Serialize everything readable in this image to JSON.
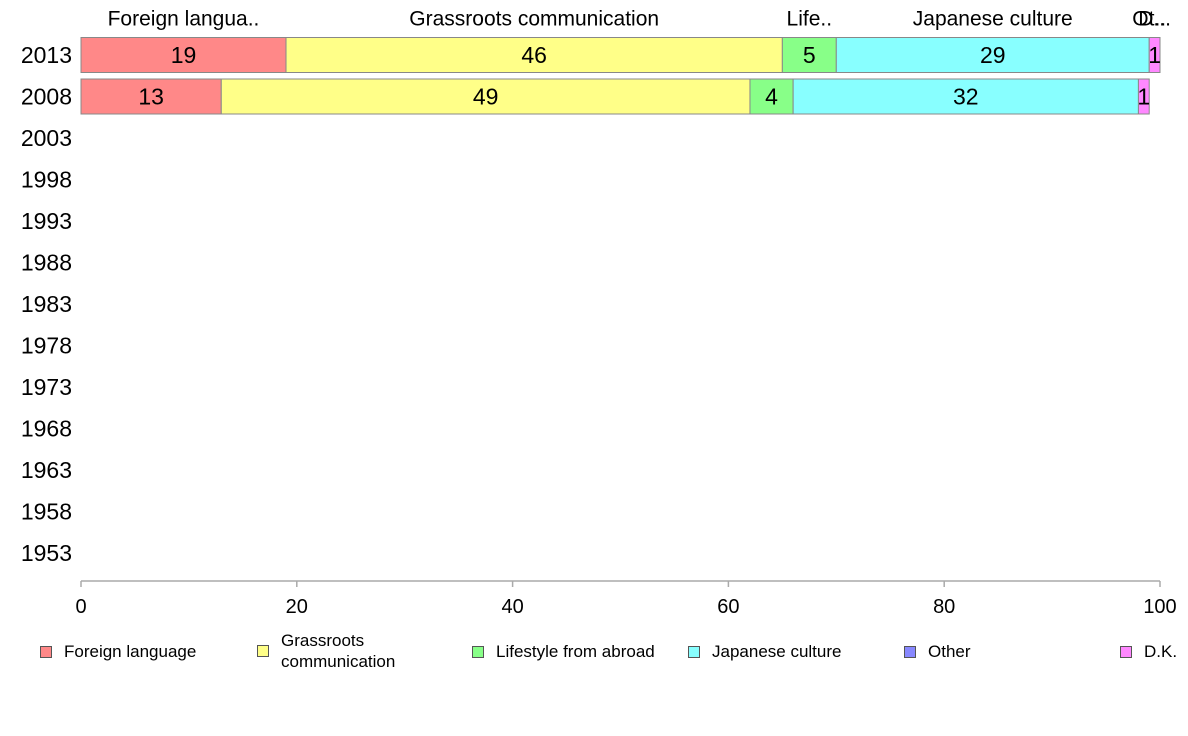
{
  "chart_data": {
    "type": "bar",
    "orientation": "horizontal",
    "stacked": true,
    "categories": [
      "2013",
      "2008",
      "2003",
      "1998",
      "1993",
      "1988",
      "1983",
      "1978",
      "1973",
      "1968",
      "1963",
      "1958",
      "1953"
    ],
    "series": [
      {
        "name": "Foreign language",
        "short_label": "Foreign langua..",
        "color": "#ff8888",
        "values": [
          19,
          13,
          null,
          null,
          null,
          null,
          null,
          null,
          null,
          null,
          null,
          null,
          null
        ]
      },
      {
        "name": "Grassroots communication",
        "short_label": "Grassroots communication",
        "color": "#ffff88",
        "values": [
          46,
          49,
          null,
          null,
          null,
          null,
          null,
          null,
          null,
          null,
          null,
          null,
          null
        ]
      },
      {
        "name": "Lifestyle from abroad",
        "short_label": "Life..",
        "color": "#88ff88",
        "values": [
          5,
          4,
          null,
          null,
          null,
          null,
          null,
          null,
          null,
          null,
          null,
          null,
          null
        ]
      },
      {
        "name": "Japanese culture",
        "short_label": "Japanese culture",
        "color": "#88ffff",
        "values": [
          29,
          32,
          null,
          null,
          null,
          null,
          null,
          null,
          null,
          null,
          null,
          null,
          null
        ]
      },
      {
        "name": "Other",
        "short_label": "Ot..",
        "color": "#8888ff",
        "values": [
          0,
          0,
          null,
          null,
          null,
          null,
          null,
          null,
          null,
          null,
          null,
          null,
          null
        ]
      },
      {
        "name": "D.K.",
        "short_label": "D...",
        "color": "#ff88ff",
        "values": [
          1,
          1,
          null,
          null,
          null,
          null,
          null,
          null,
          null,
          null,
          null,
          null,
          null
        ]
      }
    ],
    "xlim": [
      0,
      100
    ],
    "xticks": [
      0,
      20,
      40,
      60,
      80,
      100
    ],
    "legend_labels": [
      "Foreign language",
      "Grassroots\ncommunication",
      "Lifestyle from abroad",
      "Japanese culture",
      "Other",
      "D.K."
    ],
    "legend_position": "bottom",
    "grid": false
  }
}
